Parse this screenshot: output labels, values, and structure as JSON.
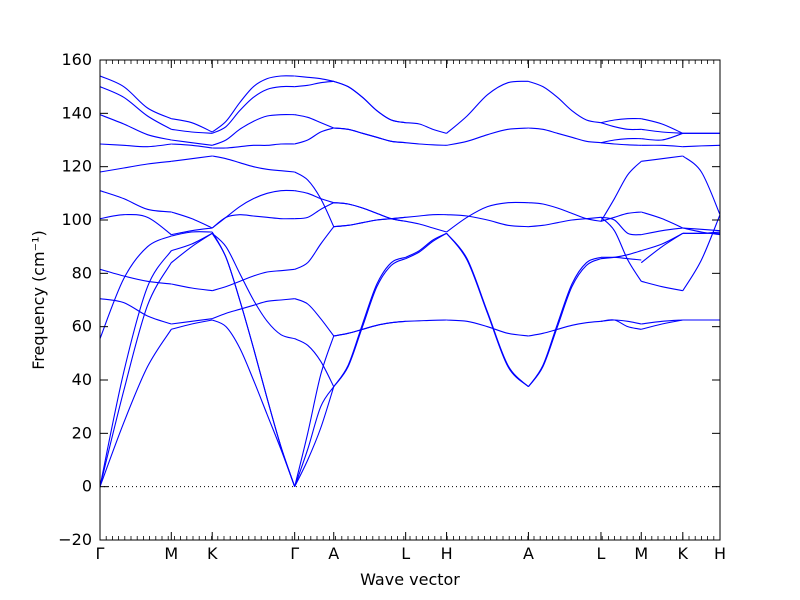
{
  "chart_data": {
    "type": "line",
    "xlabel": "Wave vector",
    "ylabel": "Frequency (cm⁻¹)",
    "ylim": [
      -20,
      160
    ],
    "yticks": [
      -20,
      0,
      20,
      40,
      60,
      80,
      100,
      120,
      140,
      160
    ],
    "x_path": {
      "labels": [
        "Γ",
        "M",
        "K",
        "Γ",
        "A",
        "L",
        "H",
        "A",
        "L",
        "M",
        "K",
        "H"
      ],
      "positions": [
        0,
        0.115,
        0.181,
        0.314,
        0.377,
        0.493,
        0.559,
        0.691,
        0.808,
        0.873,
        0.94,
        1.0
      ]
    },
    "line_color": "#0000ff",
    "zero_line": {
      "y": 0,
      "style": "dotted"
    },
    "grid": false,
    "segments": [
      {
        "name": "Γ-M",
        "x": [
          0,
          0.115
        ],
        "bands": [
          {
            "values": [
              0,
              24,
              45,
              59
            ]
          },
          {
            "values": [
              0,
              36,
              68,
              84
            ]
          },
          {
            "values": [
              0,
              43,
              75,
              88.5
            ]
          },
          {
            "values": [
              55.5,
              78,
              90,
              94
            ]
          },
          {
            "values": [
              70.5,
              69,
              64,
              61
            ]
          },
          {
            "values": [
              81.5,
              79,
              77,
              76
            ]
          },
          {
            "values": [
              100.5,
              102,
              101,
              94.5
            ]
          },
          {
            "values": [
              111,
              108,
              104,
              103
            ]
          },
          {
            "values": [
              118,
              119.5,
              121,
              122
            ]
          },
          {
            "values": [
              128.5,
              128,
              127.5,
              128.5
            ]
          },
          {
            "values": [
              139.5,
              136,
              132,
              130
            ]
          },
          {
            "values": [
              150,
              146,
              139,
              134
            ]
          },
          {
            "values": [
              154,
              150,
              142,
              138
            ]
          }
        ]
      },
      {
        "name": "M-K",
        "x": [
          0.115,
          0.181
        ],
        "bands": [
          {
            "values": [
              59,
              61,
              62.5
            ]
          },
          {
            "values": [
              84,
              90,
              95
            ]
          },
          {
            "values": [
              88.5,
              91,
              95
            ]
          },
          {
            "values": [
              94,
              95.5,
              95.5
            ]
          },
          {
            "values": [
              61,
              62,
              63
            ]
          },
          {
            "values": [
              76,
              74.5,
              73.5
            ]
          },
          {
            "values": [
              94.5,
              96,
              97
            ]
          },
          {
            "values": [
              103,
              100.5,
              97
            ]
          },
          {
            "values": [
              122,
              123,
              124
            ]
          },
          {
            "values": [
              128.5,
              128,
              127
            ]
          },
          {
            "values": [
              130,
              129,
              128
            ]
          },
          {
            "values": [
              134,
              133,
              132.5
            ]
          },
          {
            "values": [
              138,
              136.5,
              133
            ]
          }
        ]
      },
      {
        "name": "K-Γ",
        "x": [
          0.181,
          0.314
        ],
        "bands": [
          {
            "values": [
              62.5,
              60,
              52,
              40,
              27,
              14,
              0
            ]
          },
          {
            "values": [
              95,
              86,
              70,
              52,
              33,
              15,
              0
            ]
          },
          {
            "values": [
              95,
              90,
              80,
              70,
              62,
              57,
              55.5
            ]
          },
          {
            "values": [
              95.5,
              86,
              70,
              52,
              33,
              15,
              0
            ]
          },
          {
            "values": [
              63,
              65,
              66.5,
              68,
              69.5,
              70,
              70.5
            ]
          },
          {
            "values": [
              73.5,
              75,
              77,
              79,
              80.5,
              81,
              81.5
            ]
          },
          {
            "values": [
              97,
              101,
              102,
              101.5,
              101,
              100.5,
              100.5
            ]
          },
          {
            "values": [
              97,
              101,
              105,
              108,
              110,
              111,
              111
            ]
          },
          {
            "values": [
              124,
              123,
              121.5,
              120,
              119,
              118.5,
              118
            ]
          },
          {
            "values": [
              127,
              127,
              127.5,
              128,
              128,
              128.5,
              128.5
            ]
          },
          {
            "values": [
              128,
              130,
              134,
              137,
              139,
              139.5,
              139.5
            ]
          },
          {
            "values": [
              132.5,
              135,
              141,
              146,
              149,
              150,
              150
            ]
          },
          {
            "values": [
              133,
              137,
              144,
              150,
              153,
              154,
              154
            ]
          }
        ]
      },
      {
        "name": "Γ-A",
        "x": [
          0.314,
          0.377
        ],
        "bands": [
          {
            "values": [
              0,
              10,
              22,
              37.5
            ]
          },
          {
            "values": [
              0,
              14,
              30,
              37.5
            ]
          },
          {
            "values": [
              55.5,
              53,
              47,
              37.5
            ]
          },
          {
            "values": [
              0,
              20,
              42,
              56.5
            ]
          },
          {
            "values": [
              70.5,
              68.5,
              63,
              56.5
            ]
          },
          {
            "values": [
              81.5,
              84,
              91,
              97.5
            ]
          },
          {
            "values": [
              100.5,
              101,
              104,
              106.5
            ]
          },
          {
            "values": [
              111,
              110,
              108,
              106.5
            ]
          },
          {
            "values": [
              118,
              115,
              108,
              97.5
            ]
          },
          {
            "values": [
              128.5,
              130,
              133,
              134.5
            ]
          },
          {
            "values": [
              139.5,
              138.5,
              136.5,
              134.5
            ]
          },
          {
            "values": [
              150,
              150.5,
              151.5,
              152
            ]
          },
          {
            "values": [
              154,
              153.5,
              153,
              152
            ]
          }
        ]
      },
      {
        "name": "A-L",
        "x": [
          0.377,
          0.493
        ],
        "bands": [
          {
            "values": [
              37.5,
              45,
              60,
              75,
              83,
              85.5
            ]
          },
          {
            "values": [
              37.5,
              45.5,
              61,
              76,
              84,
              86
            ]
          },
          {
            "values": [
              56.5,
              57.5,
              59,
              60.5,
              61.5,
              62
            ]
          },
          {
            "values": [
              56.5,
              57.5,
              59,
              60.5,
              61.5,
              62
            ]
          },
          {
            "values": [
              97.5,
              98,
              99,
              100,
              100.5,
              101
            ]
          },
          {
            "values": [
              97.5,
              98,
              99,
              100,
              100.5,
              101
            ]
          },
          {
            "values": [
              106.5,
              106,
              104.5,
              102.5,
              100.5,
              99.5
            ]
          },
          {
            "values": [
              106.5,
              106,
              104.5,
              102.5,
              100.5,
              99.5
            ]
          },
          {
            "values": [
              134.5,
              134,
              132.5,
              131,
              129.5,
              129
            ]
          },
          {
            "values": [
              134.5,
              134,
              132.5,
              131,
              129.5,
              129
            ]
          },
          {
            "values": [
              152,
              150,
              146,
              141,
              137.5,
              136.5
            ]
          },
          {
            "values": [
              152,
              150,
              146,
              141,
              137.5,
              136.5
            ]
          }
        ]
      },
      {
        "name": "L-H",
        "x": [
          0.493,
          0.559
        ],
        "bands": [
          {
            "values": [
              85.5,
              88,
              92,
              95
            ]
          },
          {
            "values": [
              86,
              88.5,
              92.5,
              95
            ]
          },
          {
            "values": [
              62,
              62.2,
              62.4,
              62.5
            ]
          },
          {
            "values": [
              101,
              101.5,
              102,
              102
            ]
          },
          {
            "values": [
              99.5,
              98.5,
              97,
              95.5
            ]
          },
          {
            "values": [
              129,
              128.5,
              128.2,
              128
            ]
          },
          {
            "values": [
              136.5,
              136,
              134,
              132.5
            ]
          }
        ]
      },
      {
        "name": "H-A",
        "x": [
          0.559,
          0.691
        ],
        "bands": [
          {
            "values": [
              95,
              85,
              65,
              45,
              37.5
            ]
          },
          {
            "values": [
              95,
              85.5,
              65.5,
              45.5,
              37.5
            ]
          },
          {
            "values": [
              62.5,
              62,
              60,
              57.5,
              56.5
            ]
          },
          {
            "values": [
              102,
              101.5,
              100,
              98,
              97.5
            ]
          },
          {
            "values": [
              95.5,
              101,
              105,
              106.5,
              106.5
            ]
          },
          {
            "values": [
              128,
              129.5,
              132,
              134,
              134.5
            ]
          },
          {
            "values": [
              132.5,
              139,
              147,
              151.5,
              152
            ]
          }
        ]
      },
      {
        "name": "A-L",
        "x": [
          0.691,
          0.808
        ],
        "bands": [
          {
            "values": [
              37.5,
              45,
              60,
              75,
              83,
              85.5
            ]
          },
          {
            "values": [
              37.5,
              45.5,
              61,
              76,
              84,
              86
            ]
          },
          {
            "values": [
              56.5,
              57.5,
              59,
              60.5,
              61.5,
              62
            ]
          },
          {
            "values": [
              97.5,
              98,
              99,
              100,
              100.5,
              101
            ]
          },
          {
            "values": [
              106.5,
              106,
              104.5,
              102.5,
              100.5,
              99.5
            ]
          },
          {
            "values": [
              134.5,
              134,
              132.5,
              131,
              129.5,
              129
            ]
          },
          {
            "values": [
              152,
              150,
              146,
              141,
              137.5,
              136.5
            ]
          }
        ]
      },
      {
        "name": "L-M",
        "x": [
          0.808,
          0.873
        ],
        "bands": [
          {
            "values": [
              85.5,
              86,
              87,
              88.5
            ]
          },
          {
            "values": [
              86,
              86,
              85.5,
              85
            ]
          },
          {
            "values": [
              101,
              96,
              85,
              77
            ]
          },
          {
            "values": [
              99.5,
              108,
              117,
              122
            ]
          },
          {
            "values": [
              62,
              62.5,
              60,
              59
            ]
          },
          {
            "values": [
              62,
              62.5,
              62,
              61
            ]
          },
          {
            "values": [
              101,
              100,
              95,
              94.5
            ]
          },
          {
            "values": [
              99.5,
              101,
              102.5,
              103
            ]
          },
          {
            "values": [
              129,
              128.5,
              128.2,
              128
            ]
          },
          {
            "values": [
              129,
              130,
              130.5,
              130.5
            ]
          },
          {
            "values": [
              136.5,
              135,
              134,
              134
            ]
          },
          {
            "values": [
              136.5,
              137.5,
              138,
              138
            ]
          }
        ]
      },
      {
        "name": "M-K",
        "x": [
          0.873,
          0.94
        ],
        "bands": [
          {
            "values": [
              59,
              61,
              62.5
            ]
          },
          {
            "values": [
              61,
              62,
              62.5
            ]
          },
          {
            "values": [
              77,
              75,
              73.5
            ]
          },
          {
            "values": [
              122,
              123,
              124
            ]
          },
          {
            "values": [
              84,
              90,
              95
            ]
          },
          {
            "values": [
              88.5,
              91,
              95
            ]
          },
          {
            "values": [
              94.5,
              96,
              97
            ]
          },
          {
            "values": [
              103,
              100.5,
              97
            ]
          },
          {
            "values": [
              128,
              128,
              127.5
            ]
          },
          {
            "values": [
              130.5,
              130,
              132.5
            ]
          },
          {
            "values": [
              134,
              133,
              132.5
            ]
          },
          {
            "values": [
              138,
              136,
              132.5
            ]
          }
        ]
      },
      {
        "name": "K-H",
        "x": [
          0.94,
          1.0
        ],
        "bands": [
          {
            "values": [
              62.5,
              62.5,
              62.5
            ]
          },
          {
            "values": [
              62.5,
              62.5,
              62.5
            ]
          },
          {
            "values": [
              73.5,
              85,
              102
            ]
          },
          {
            "values": [
              124,
              118,
              102
            ]
          },
          {
            "values": [
              95,
              95,
              95
            ]
          },
          {
            "values": [
              95,
              95,
              95.5
            ]
          },
          {
            "values": [
              97,
              96.5,
              96
            ]
          },
          {
            "values": [
              97,
              95.5,
              94.5
            ]
          },
          {
            "values": [
              127.5,
              127.8,
              128
            ]
          },
          {
            "values": [
              132.5,
              132.5,
              132.5
            ]
          },
          {
            "values": [
              132.5,
              132.5,
              132.5
            ]
          }
        ]
      }
    ]
  }
}
